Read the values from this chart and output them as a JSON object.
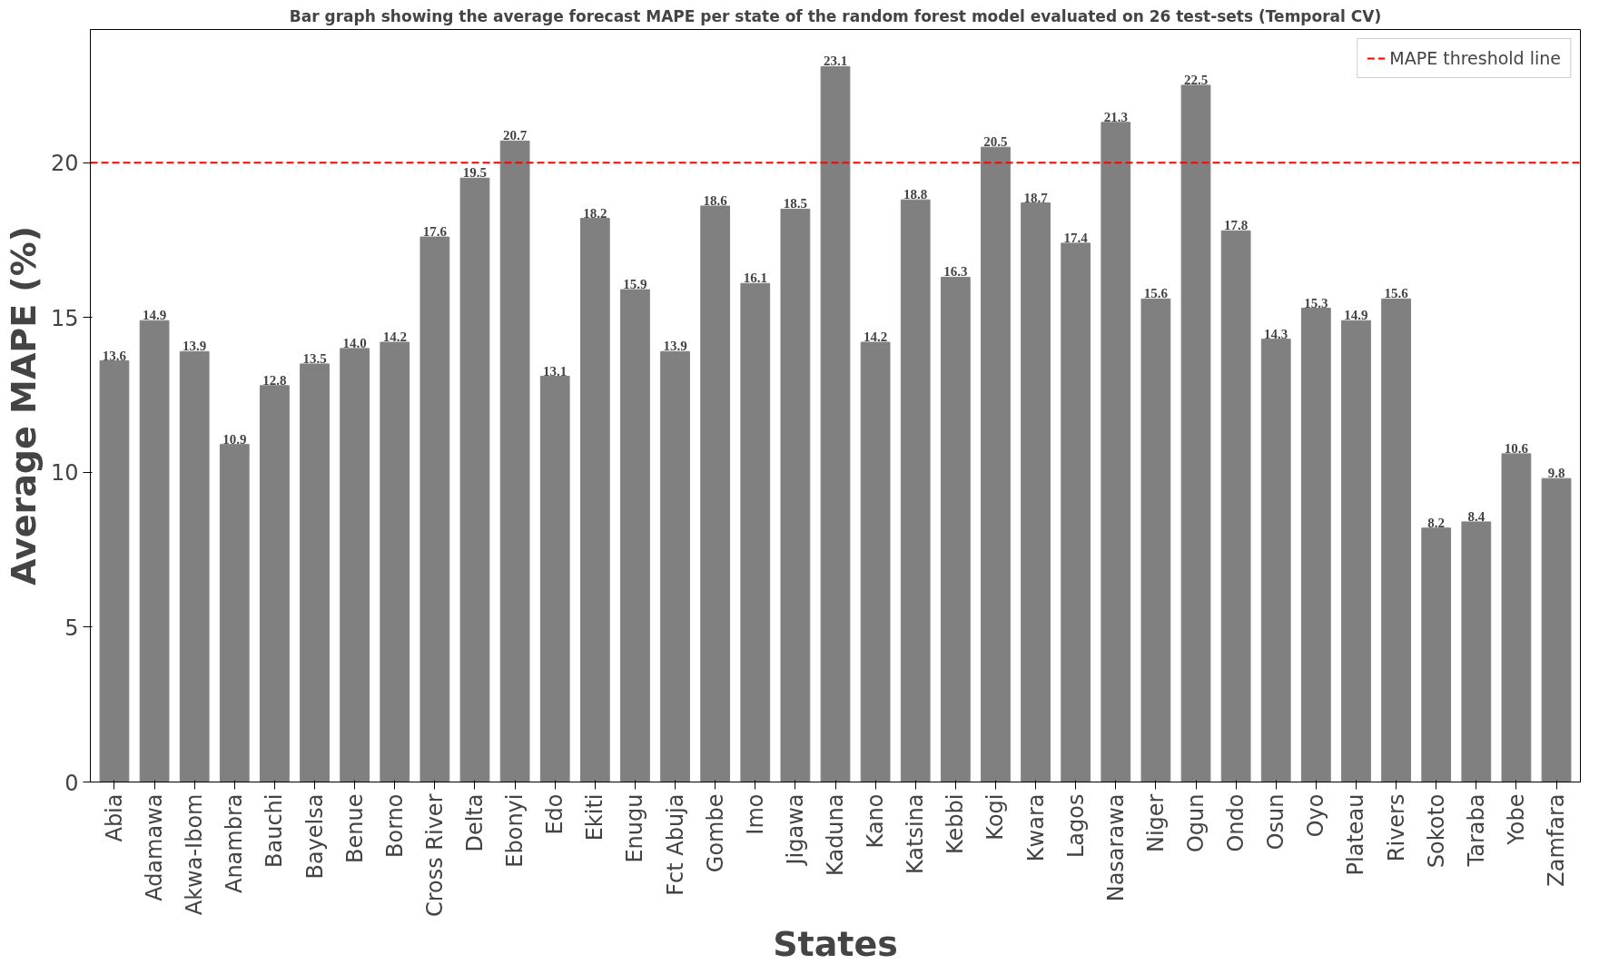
{
  "chart_data": {
    "type": "bar",
    "title": "Bar graph showing the average forecast MAPE per state of the random forest model evaluated on 26 test-sets (Temporal CV)",
    "xlabel": "States",
    "ylabel": "Average MAPE (%)",
    "categories": [
      "Abia",
      "Adamawa",
      "Akwa-Ibom",
      "Anambra",
      "Bauchi",
      "Bayelsa",
      "Benue",
      "Borno",
      "Cross River",
      "Delta",
      "Ebonyi",
      "Edo",
      "Ekiti",
      "Enugu",
      "Fct Abuja",
      "Gombe",
      "Imo",
      "Jigawa",
      "Kaduna",
      "Kano",
      "Katsina",
      "Kebbi",
      "Kogi",
      "Kwara",
      "Lagos",
      "Nasarawa",
      "Niger",
      "Ogun",
      "Ondo",
      "Osun",
      "Oyo",
      "Plateau",
      "Rivers",
      "Sokoto",
      "Taraba",
      "Yobe",
      "Zamfara"
    ],
    "values": [
      13.6,
      14.9,
      13.9,
      10.9,
      12.8,
      13.5,
      14.0,
      14.2,
      17.6,
      19.5,
      20.7,
      13.1,
      18.2,
      15.9,
      13.9,
      18.6,
      16.1,
      18.5,
      23.1,
      14.2,
      18.8,
      16.3,
      20.5,
      18.7,
      17.4,
      21.3,
      15.6,
      22.5,
      17.8,
      14.3,
      15.3,
      14.9,
      15.6,
      8.2,
      8.4,
      10.6,
      9.8
    ],
    "value_labels": [
      "13.6",
      "14.9",
      "13.9",
      "10.9",
      "12.8",
      "13.5",
      "14.0",
      "14.2",
      "17.6",
      "19.5",
      "20.7",
      "13.1",
      "18.2",
      "15.9",
      "13.9",
      "18.6",
      "16.1",
      "18.5",
      "23.1",
      "14.2",
      "18.8",
      "16.3",
      "20.5",
      "18.7",
      "17.4",
      "21.3",
      "15.6",
      "22.5",
      "17.8",
      "14.3",
      "15.3",
      "14.9",
      "15.6",
      "8.2",
      "8.4",
      "10.6",
      "9.8"
    ],
    "color": "#808080",
    "ylim": [
      0,
      24.3
    ],
    "yticks": [
      0,
      5,
      10,
      15,
      20
    ],
    "ref_lines": [
      {
        "axis": "y",
        "value": 20,
        "label": "MAPE threshold line",
        "color": "#ff0000",
        "line_style": "dashed"
      }
    ],
    "legend": "top right",
    "grid": false
  }
}
